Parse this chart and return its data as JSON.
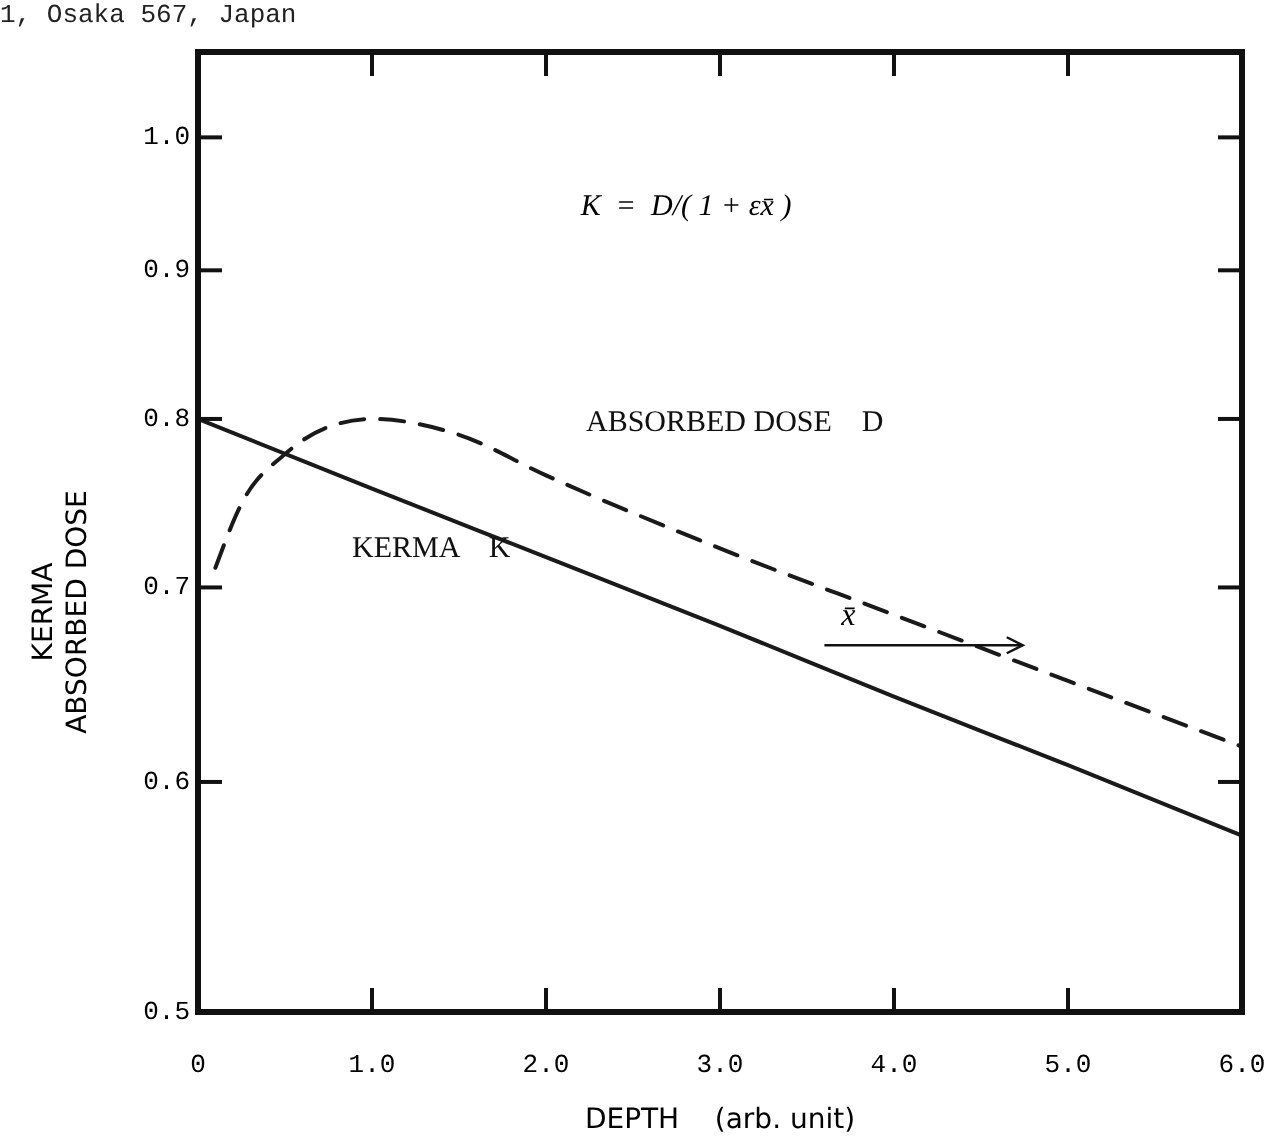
{
  "chart_data": {
    "type": "line",
    "xlabel": "DEPTH    (arb. unit)",
    "ylabel": "KERMA\nABSORBED DOSE",
    "log": "y",
    "grid": false,
    "marker": "none",
    "xlim": [
      0,
      6
    ],
    "ylim": [
      0.5,
      1.07
    ],
    "xticks": [
      0,
      {
        "value": 1,
        "label": "1.0"
      },
      {
        "value": 2,
        "label": "2.0"
      },
      {
        "value": 3,
        "label": "3.0"
      },
      {
        "value": 4,
        "label": "4.0"
      },
      {
        "value": 5,
        "label": "5.0"
      },
      {
        "value": 6,
        "label": "6.0"
      }
    ],
    "yticks": [
      0.5,
      0.6,
      0.7,
      0.8,
      0.9,
      {
        "value": 1,
        "label": "1.0"
      }
    ],
    "series": [
      {
        "name": "KERMA    K",
        "color": "#1a1a1a",
        "line_style": "solid",
        "x": [
          0,
          1,
          2,
          3,
          4,
          5,
          6
        ],
        "values": [
          0.8,
          0.757,
          0.717,
          0.679,
          0.642,
          0.608,
          0.575
        ]
      },
      {
        "name": "ABSORBED DOSE    D",
        "color": "#1a1a1a",
        "line_style": "dashed",
        "x": [
          0.1,
          0.25,
          0.5,
          0.75,
          1.0,
          1.5,
          2.0,
          3.0,
          4.0,
          5.0,
          6.0
        ],
        "values": [
          0.711,
          0.748,
          0.778,
          0.795,
          0.8,
          0.79,
          0.765,
          0.722,
          0.685,
          0.65,
          0.617
        ]
      }
    ],
    "annotations": [
      "1, Osaka 567, Japan",
      "K  =  D/( 1 + εx̄ )",
      "x̄"
    ]
  }
}
